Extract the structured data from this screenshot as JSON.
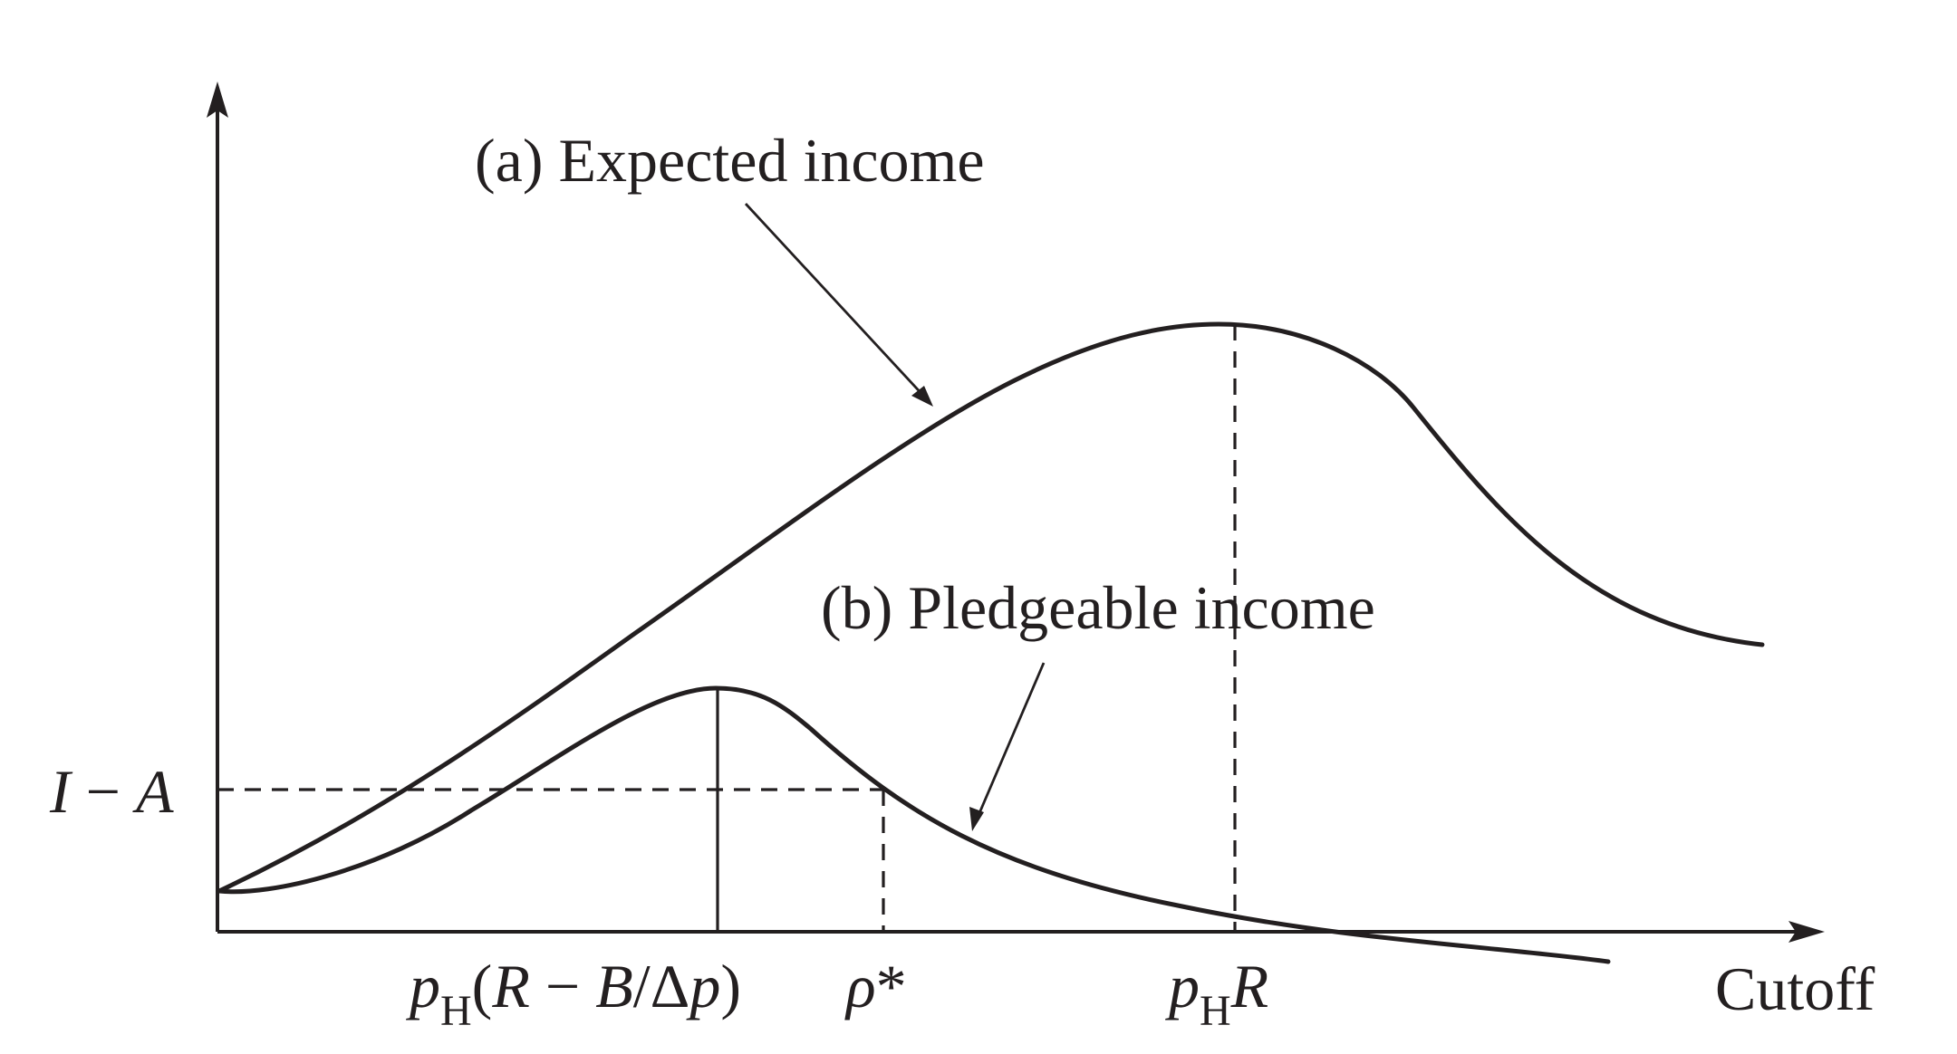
{
  "figure": {
    "curve_a_label": "(a) Expected income",
    "curve_b_label": "(b) Pledgeable income",
    "y_tick_label": {
      "I": "I",
      "minus": " − ",
      "A": "A"
    },
    "x_axis_label": "Cutoff",
    "x_tick_1": {
      "p": "p",
      "sub": "H",
      "open": "(",
      "R": "R",
      "minus": " − ",
      "B": "B",
      "slash": "/Δ",
      "p2": "p",
      "close": ")"
    },
    "x_tick_2": {
      "rho": "ρ",
      "star": "*"
    },
    "x_tick_3": {
      "p": "p",
      "sub": "H",
      "R": "R"
    }
  }
}
